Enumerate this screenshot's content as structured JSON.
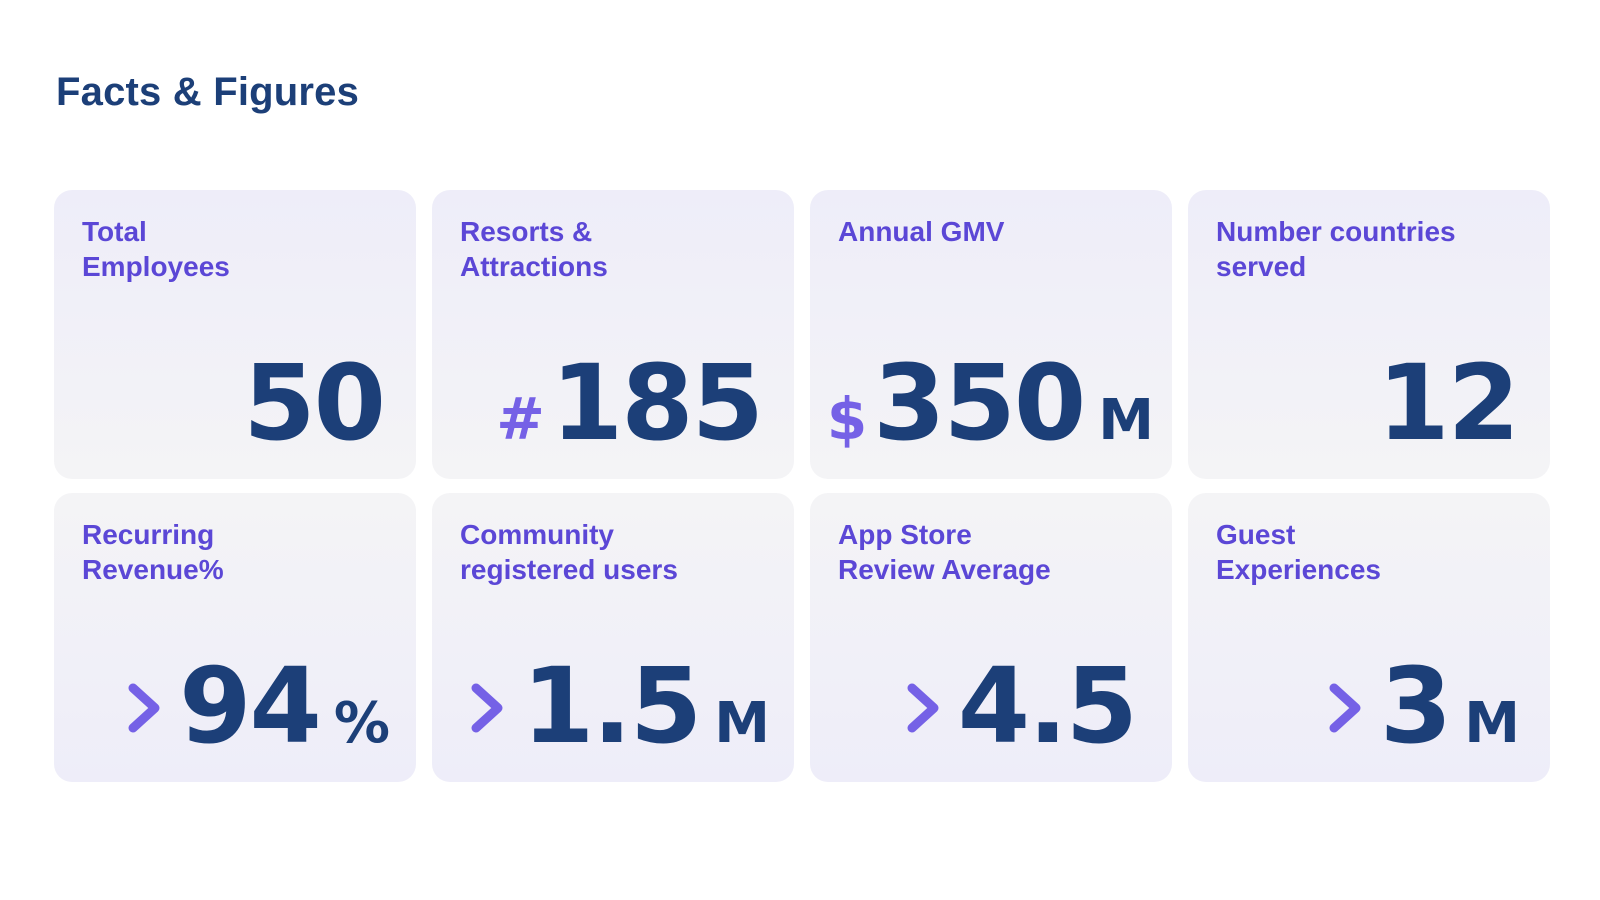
{
  "page": {
    "title": "Facts & Figures"
  },
  "colors": {
    "title": "#1c3f78",
    "label": "#5b47d6",
    "value": "#1c3f78",
    "accent": "#7561e6",
    "card_bg": "#f1f0f8"
  },
  "cards": [
    {
      "label": "Total\nEmployees",
      "prefix": "",
      "value": "50",
      "suffix": ""
    },
    {
      "label": "Resorts &\nAttractions",
      "prefix": "#",
      "value": "185",
      "suffix": ""
    },
    {
      "label": "Annual GMV",
      "prefix": "$",
      "value": "350",
      "suffix": "M"
    },
    {
      "label": "Number countries\nserved",
      "prefix": "",
      "value": "12",
      "suffix": ""
    },
    {
      "label": "Recurring\nRevenue%",
      "icon": "chevron-right-icon",
      "value": "94",
      "suffix": "%"
    },
    {
      "label": "Community\nregistered users",
      "icon": "chevron-right-icon",
      "value": "1.5",
      "suffix": "M"
    },
    {
      "label": "App Store\nReview Average",
      "icon": "chevron-right-icon",
      "value": "4.5",
      "suffix": ""
    },
    {
      "label": "Guest\nExperiences",
      "icon": "chevron-right-icon",
      "value": "3",
      "suffix": "M"
    }
  ]
}
